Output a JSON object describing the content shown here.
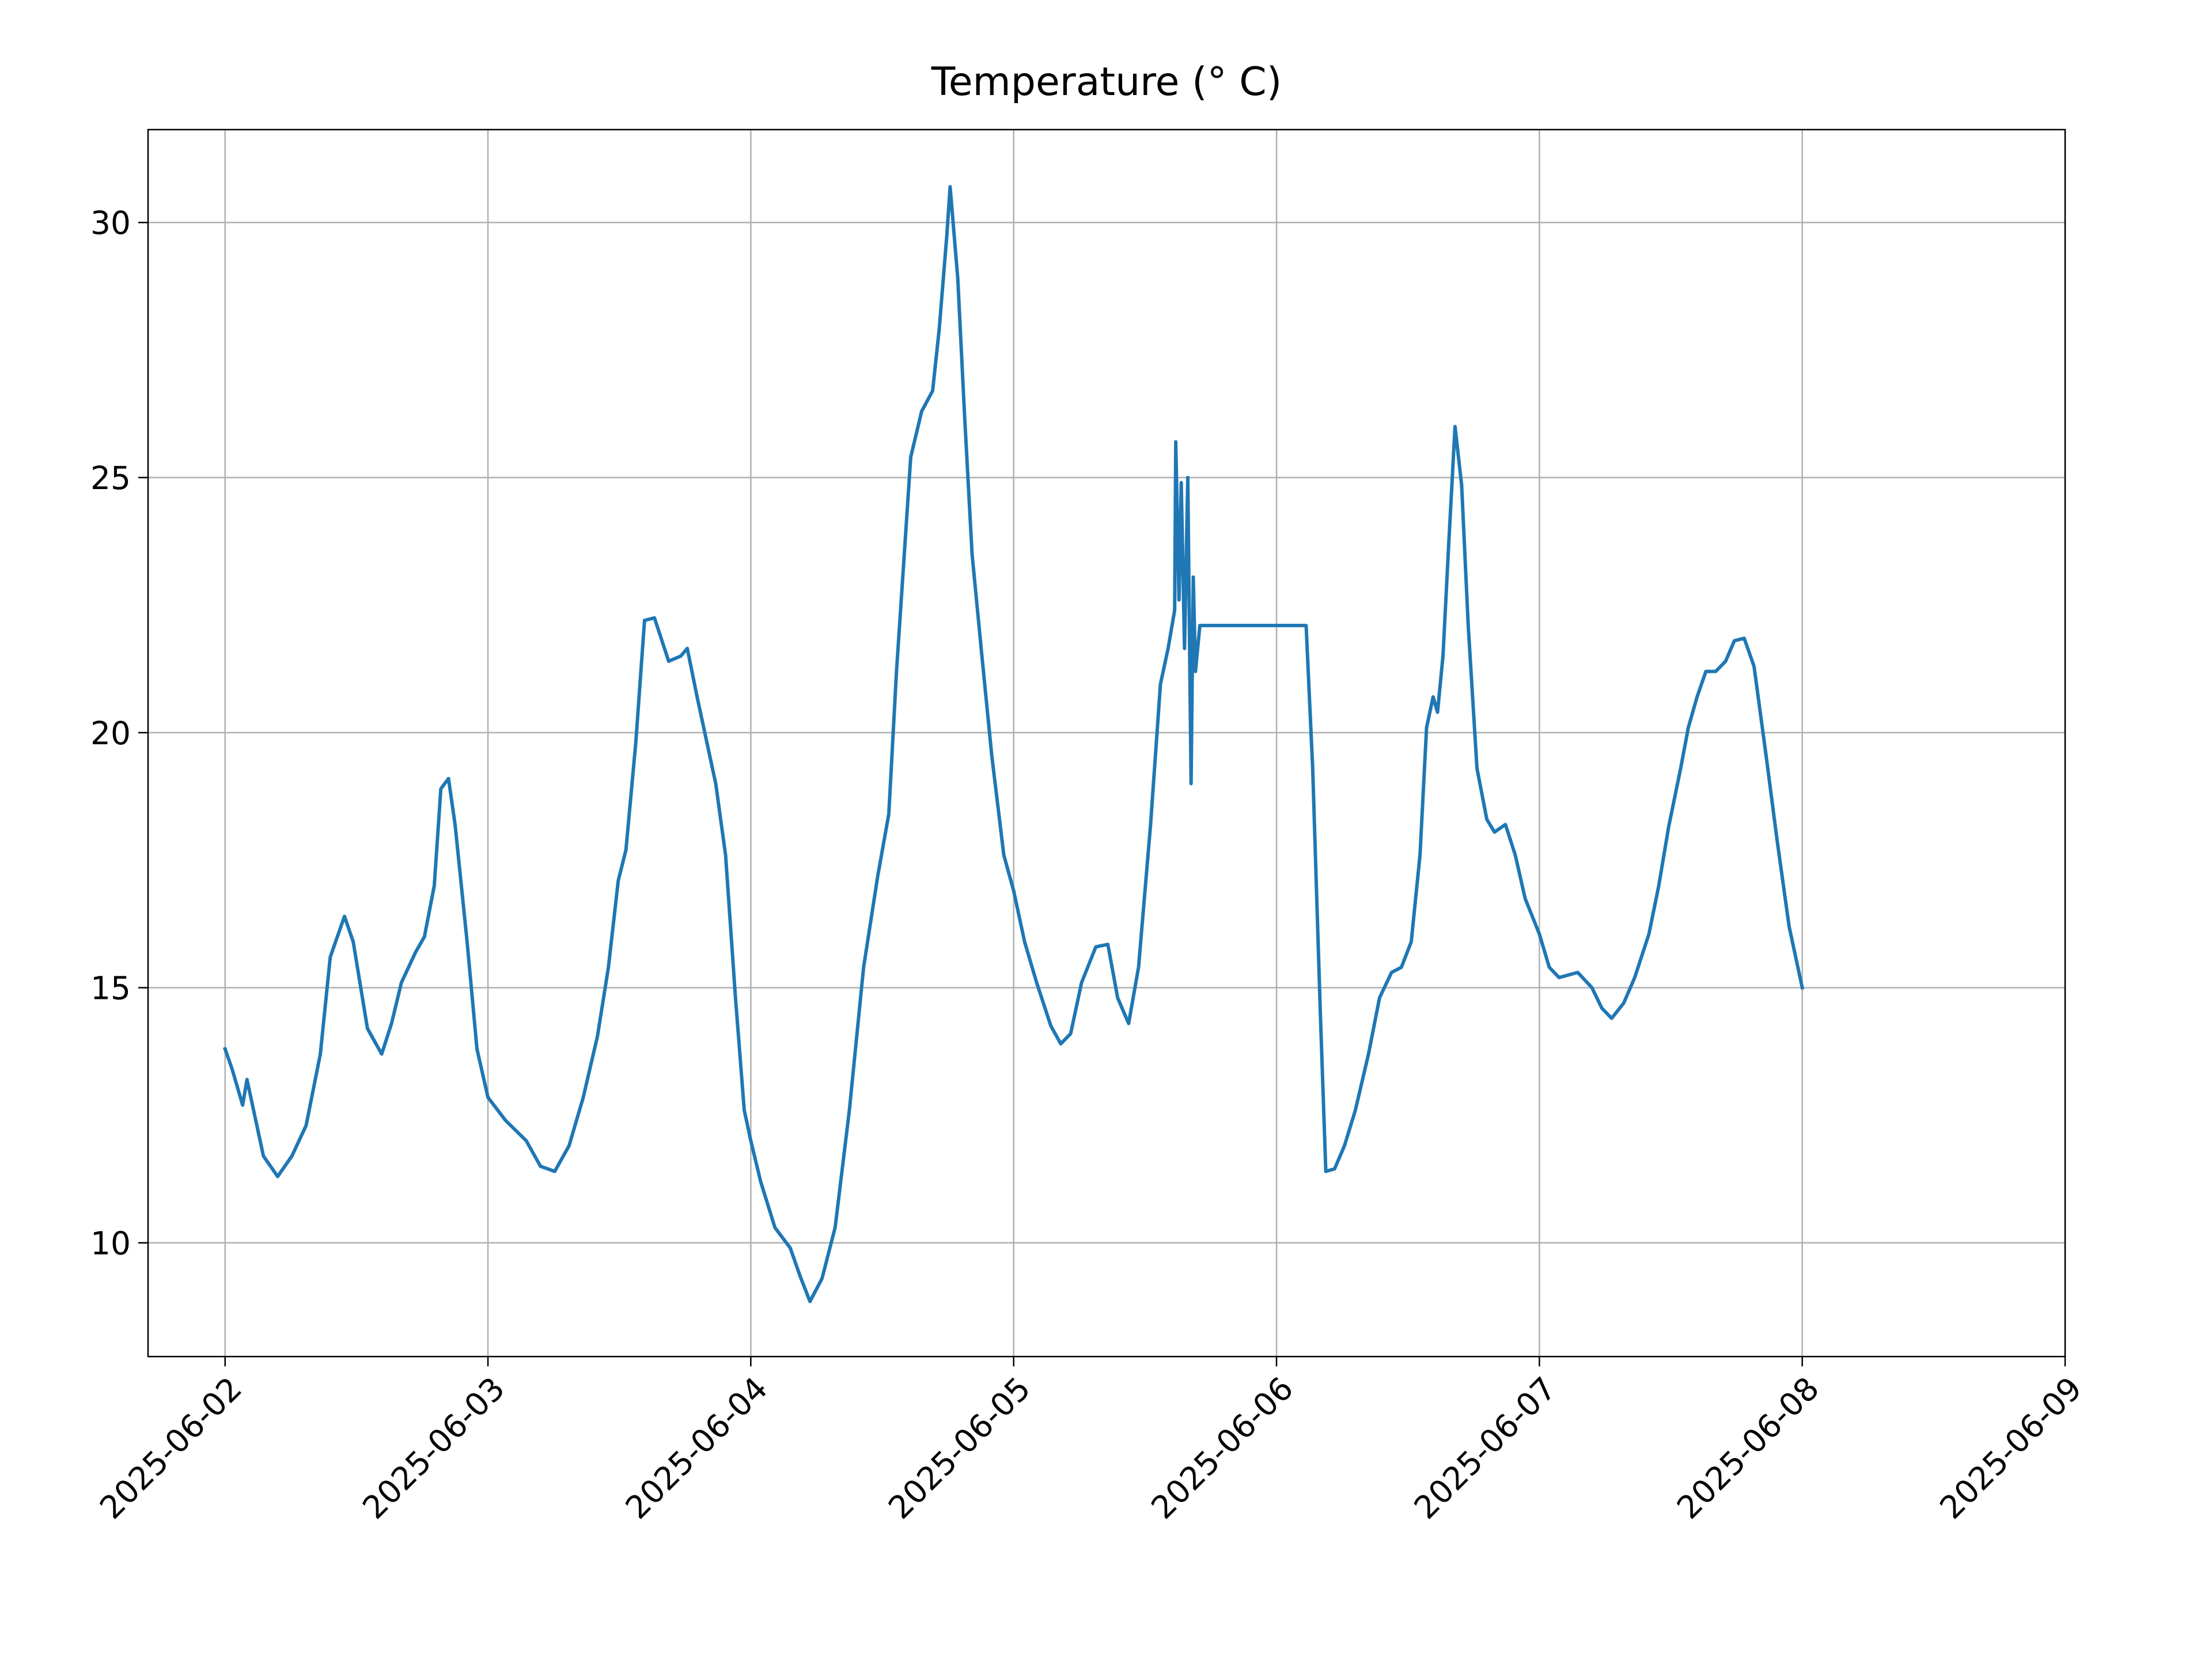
{
  "chart_data": {
    "type": "line",
    "title": "Temperature (° C)",
    "color": "#1f77b4",
    "grid": true,
    "x": [
      "2025-06-02 00:00",
      "2025-06-02 00:39",
      "2025-06-02 01:36",
      "2025-06-02 02:00",
      "2025-06-02 02:36",
      "2025-06-02 03:30",
      "2025-06-02 04:48",
      "2025-06-02 06:06",
      "2025-06-02 07:24",
      "2025-06-02 08:42",
      "2025-06-02 09:36",
      "2025-06-02 10:54",
      "2025-06-02 11:42",
      "2025-06-02 13:00",
      "2025-06-02 14:18",
      "2025-06-02 15:12",
      "2025-06-02 16:06",
      "2025-06-02 17:24",
      "2025-06-02 18:12",
      "2025-06-02 19:06",
      "2025-06-02 19:42",
      "2025-06-02 20:24",
      "2025-06-02 21:00",
      "2025-06-02 22:06",
      "2025-06-02 23:00",
      "2025-06-03 00:00",
      "2025-06-03 01:36",
      "2025-06-03 03:30",
      "2025-06-03 04:48",
      "2025-06-03 06:06",
      "2025-06-03 07:24",
      "2025-06-03 08:42",
      "2025-06-03 10:00",
      "2025-06-03 11:00",
      "2025-06-03 11:54",
      "2025-06-03 12:36",
      "2025-06-03 13:30",
      "2025-06-03 14:18",
      "2025-06-03 15:12",
      "2025-06-03 16:30",
      "2025-06-03 17:36",
      "2025-06-03 18:12",
      "2025-06-03 19:06",
      "2025-06-03 20:00",
      "2025-06-03 20:48",
      "2025-06-03 21:42",
      "2025-06-03 22:36",
      "2025-06-03 23:24",
      "2025-06-04 00:00",
      "2025-06-04 00:54",
      "2025-06-04 02:12",
      "2025-06-04 03:36",
      "2025-06-04 04:30",
      "2025-06-04 05:24",
      "2025-06-04 06:30",
      "2025-06-04 07:42",
      "2025-06-04 09:00",
      "2025-06-04 10:18",
      "2025-06-04 11:36",
      "2025-06-04 12:36",
      "2025-06-04 13:18",
      "2025-06-04 14:36",
      "2025-06-04 15:36",
      "2025-06-04 16:36",
      "2025-06-04 17:12",
      "2025-06-04 17:54",
      "2025-06-04 18:12",
      "2025-06-04 18:54",
      "2025-06-04 19:30",
      "2025-06-04 20:12",
      "2025-06-04 21:06",
      "2025-06-04 22:00",
      "2025-06-04 23:06",
      "2025-06-05 00:00",
      "2025-06-05 01:00",
      "2025-06-05 02:06",
      "2025-06-05 03:24",
      "2025-06-05 04:18",
      "2025-06-05 05:12",
      "2025-06-05 06:12",
      "2025-06-05 07:30",
      "2025-06-05 08:36",
      "2025-06-05 09:30",
      "2025-06-05 10:30",
      "2025-06-05 11:24",
      "2025-06-05 12:30",
      "2025-06-05 13:24",
      "2025-06-05 14:06",
      "2025-06-05 14:42",
      "2025-06-05 14:48",
      "2025-06-05 15:06",
      "2025-06-05 15:18",
      "2025-06-05 15:36",
      "2025-06-05 15:54",
      "2025-06-05 16:06",
      "2025-06-05 16:12",
      "2025-06-05 16:24",
      "2025-06-05 16:36",
      "2025-06-05 17:00",
      "2025-06-06 02:42",
      "2025-06-06 03:18",
      "2025-06-06 04:00",
      "2025-06-06 04:30",
      "2025-06-06 05:18",
      "2025-06-06 06:12",
      "2025-06-06 07:12",
      "2025-06-06 08:24",
      "2025-06-06 09:24",
      "2025-06-06 10:30",
      "2025-06-06 11:24",
      "2025-06-06 12:18",
      "2025-06-06 13:06",
      "2025-06-06 13:42",
      "2025-06-06 14:18",
      "2025-06-06 14:42",
      "2025-06-06 15:12",
      "2025-06-06 15:42",
      "2025-06-06 16:18",
      "2025-06-06 16:54",
      "2025-06-06 17:30",
      "2025-06-06 18:18",
      "2025-06-06 19:12",
      "2025-06-06 19:54",
      "2025-06-06 20:54",
      "2025-06-06 21:48",
      "2025-06-06 22:42",
      "2025-06-07 00:00",
      "2025-06-07 00:54",
      "2025-06-07 01:48",
      "2025-06-07 03:30",
      "2025-06-07 04:48",
      "2025-06-07 05:42",
      "2025-06-07 06:36",
      "2025-06-07 07:42",
      "2025-06-07 08:42",
      "2025-06-07 10:00",
      "2025-06-07 10:54",
      "2025-06-07 11:48",
      "2025-06-07 12:54",
      "2025-06-07 13:36",
      "2025-06-07 14:24",
      "2025-06-07 15:12",
      "2025-06-07 16:06",
      "2025-06-07 17:00",
      "2025-06-07 17:48",
      "2025-06-07 18:42",
      "2025-06-07 19:36",
      "2025-06-07 20:42",
      "2025-06-07 21:42",
      "2025-06-07 22:48",
      "2025-06-08 00:00"
    ],
    "values": [
      13.8,
      13.4,
      12.7,
      13.2,
      12.6,
      11.7,
      11.3,
      11.7,
      12.3,
      13.7,
      15.6,
      16.4,
      15.9,
      14.2,
      13.7,
      14.3,
      15.1,
      15.7,
      16.0,
      17.0,
      18.9,
      19.1,
      18.2,
      15.9,
      13.8,
      12.85,
      12.4,
      12.0,
      11.5,
      11.4,
      11.9,
      12.85,
      14.05,
      15.4,
      17.1,
      17.7,
      19.8,
      22.2,
      22.25,
      21.4,
      21.5,
      21.65,
      20.7,
      19.8,
      19.0,
      17.6,
      14.8,
      12.6,
      12.0,
      11.2,
      10.3,
      9.9,
      9.35,
      8.85,
      9.3,
      10.3,
      12.6,
      15.4,
      17.2,
      18.4,
      21.2,
      25.4,
      26.3,
      26.7,
      27.9,
      29.75,
      30.7,
      28.9,
      26.3,
      23.5,
      21.5,
      19.55,
      17.6,
      16.9,
      15.9,
      15.1,
      14.25,
      13.9,
      14.1,
      15.1,
      15.8,
      15.85,
      14.8,
      14.3,
      15.4,
      18.2,
      20.95,
      21.65,
      22.4,
      25.7,
      22.6,
      24.9,
      21.65,
      25.0,
      20.95,
      19.0,
      23.05,
      21.2,
      22.1,
      22.1,
      19.3,
      14.5,
      11.4,
      11.45,
      11.9,
      12.6,
      13.7,
      14.8,
      15.3,
      15.4,
      15.9,
      17.6,
      20.1,
      20.7,
      20.4,
      21.5,
      23.6,
      26.0,
      24.85,
      22.1,
      19.3,
      18.3,
      18.05,
      18.2,
      17.6,
      16.75,
      16.05,
      15.4,
      15.2,
      15.3,
      15.0,
      14.6,
      14.4,
      14.7,
      15.2,
      16.05,
      17.0,
      18.15,
      19.3,
      20.1,
      20.7,
      21.2,
      21.2,
      21.4,
      21.8,
      21.85,
      21.3,
      19.55,
      17.9,
      16.2,
      15.0
    ],
    "xlim": [
      "2025-06-01 16:58",
      "2025-06-09"
    ],
    "xticks": [
      "2025-06-02",
      "2025-06-03",
      "2025-06-04",
      "2025-06-05",
      "2025-06-06",
      "2025-06-07",
      "2025-06-08",
      "2025-06-09"
    ],
    "ylim": [
      7.77,
      31.82
    ],
    "yticks": [
      10,
      15,
      20,
      25,
      30
    ]
  }
}
